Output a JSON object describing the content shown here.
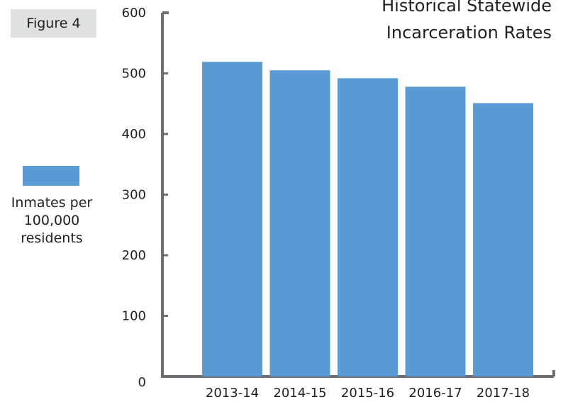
{
  "figure_label": "Figure 4",
  "legend": {
    "label": "Inmates per\n100,000\nresidents",
    "color": "#5b9bd5"
  },
  "chart_data": {
    "type": "bar",
    "title_lines": [
      "Historical Statewide",
      "Incarceration Rates"
    ],
    "categories": [
      "2013-14",
      "2014-15",
      "2015-16",
      "2016-17",
      "2017-18"
    ],
    "series": [
      {
        "name": "Inmates per 100,000 residents",
        "values": [
          519,
          505,
          492,
          478,
          451
        ],
        "color": "#5b9bd5"
      }
    ],
    "ylim": [
      0,
      600
    ],
    "yticks": [
      0,
      100,
      200,
      300,
      400,
      500,
      600
    ],
    "axis_color": "#6d6e71",
    "grid": false,
    "legend_position": "left"
  }
}
